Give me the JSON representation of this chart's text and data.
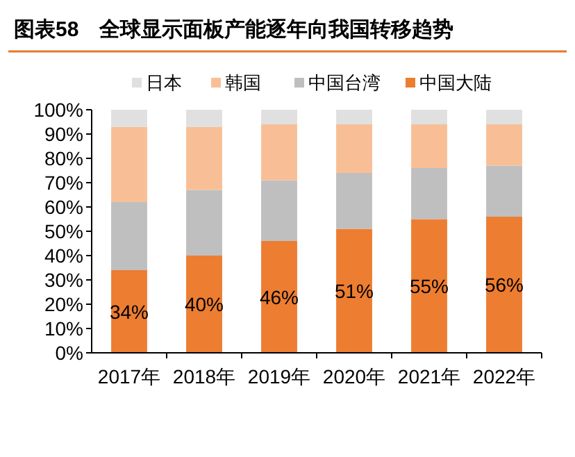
{
  "chart_data": {
    "type": "bar",
    "title": "图表58　全球显示面板产能逐年向我国转移趋势",
    "categories": [
      "2017年",
      "2018年",
      "2019年",
      "2020年",
      "2021年",
      "2022年"
    ],
    "stacked": true,
    "legend": "top",
    "grid": false,
    "series": [
      {
        "name": "中国大陆",
        "color": "#ed7d31",
        "values": [
          34,
          40,
          46,
          51,
          55,
          56
        ],
        "value_labels": [
          "34%",
          "40%",
          "46%",
          "51%",
          "55%",
          "56%"
        ]
      },
      {
        "name": "中国台湾",
        "color": "#bfbfbf",
        "values": [
          28,
          27,
          25,
          23,
          21,
          21
        ]
      },
      {
        "name": "韩国",
        "color": "#f8bf96",
        "values": [
          31,
          26,
          23,
          20,
          18,
          17
        ]
      },
      {
        "name": "日本",
        "color": "#e0e0e0",
        "values": [
          7,
          7,
          6,
          6,
          6,
          6
        ]
      }
    ],
    "ylim": [
      0,
      100
    ],
    "yticks": [
      {
        "value": 0,
        "label": "0%"
      },
      {
        "value": 10,
        "label": "10%"
      },
      {
        "value": 20,
        "label": "20%"
      },
      {
        "value": 30,
        "label": "30%"
      },
      {
        "value": 40,
        "label": "40%"
      },
      {
        "value": 50,
        "label": "50%"
      },
      {
        "value": 60,
        "label": "60%"
      },
      {
        "value": 70,
        "label": "70%"
      },
      {
        "value": 80,
        "label": "80%"
      },
      {
        "value": 90,
        "label": "90%"
      },
      {
        "value": 100,
        "label": "100%"
      }
    ]
  }
}
